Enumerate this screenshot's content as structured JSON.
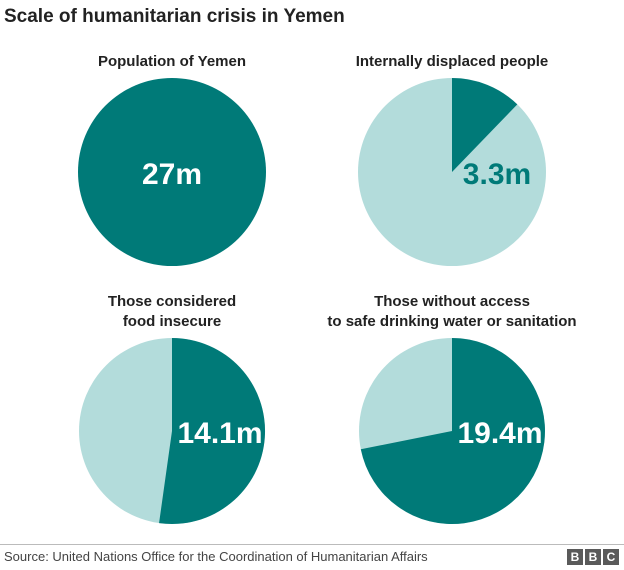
{
  "title": "Scale of humanitarian crisis in Yemen",
  "source": "Source: United Nations Office for the Coordination of Humanitarian Affairs",
  "logo": [
    "B",
    "B",
    "C"
  ],
  "colors": {
    "dark": "#007a78",
    "light": "#b3dcdb",
    "label_on_dark": "#ffffff",
    "label_on_light": "#007a78"
  },
  "chart_data": [
    {
      "type": "pie",
      "title_lines": [
        "Population of Yemen"
      ],
      "value": 27,
      "total": 27,
      "label": "27m"
    },
    {
      "type": "pie",
      "title_lines": [
        "Internally displaced people"
      ],
      "value": 3.3,
      "total": 27,
      "label": "3.3m"
    },
    {
      "type": "pie",
      "title_lines": [
        "Those considered",
        "food insecure"
      ],
      "value": 14.1,
      "total": 27,
      "label": "14.1m"
    },
    {
      "type": "pie",
      "title_lines": [
        "Those without access",
        "to safe drinking water or sanitation"
      ],
      "value": 19.4,
      "total": 27,
      "label": "19.4m"
    }
  ]
}
